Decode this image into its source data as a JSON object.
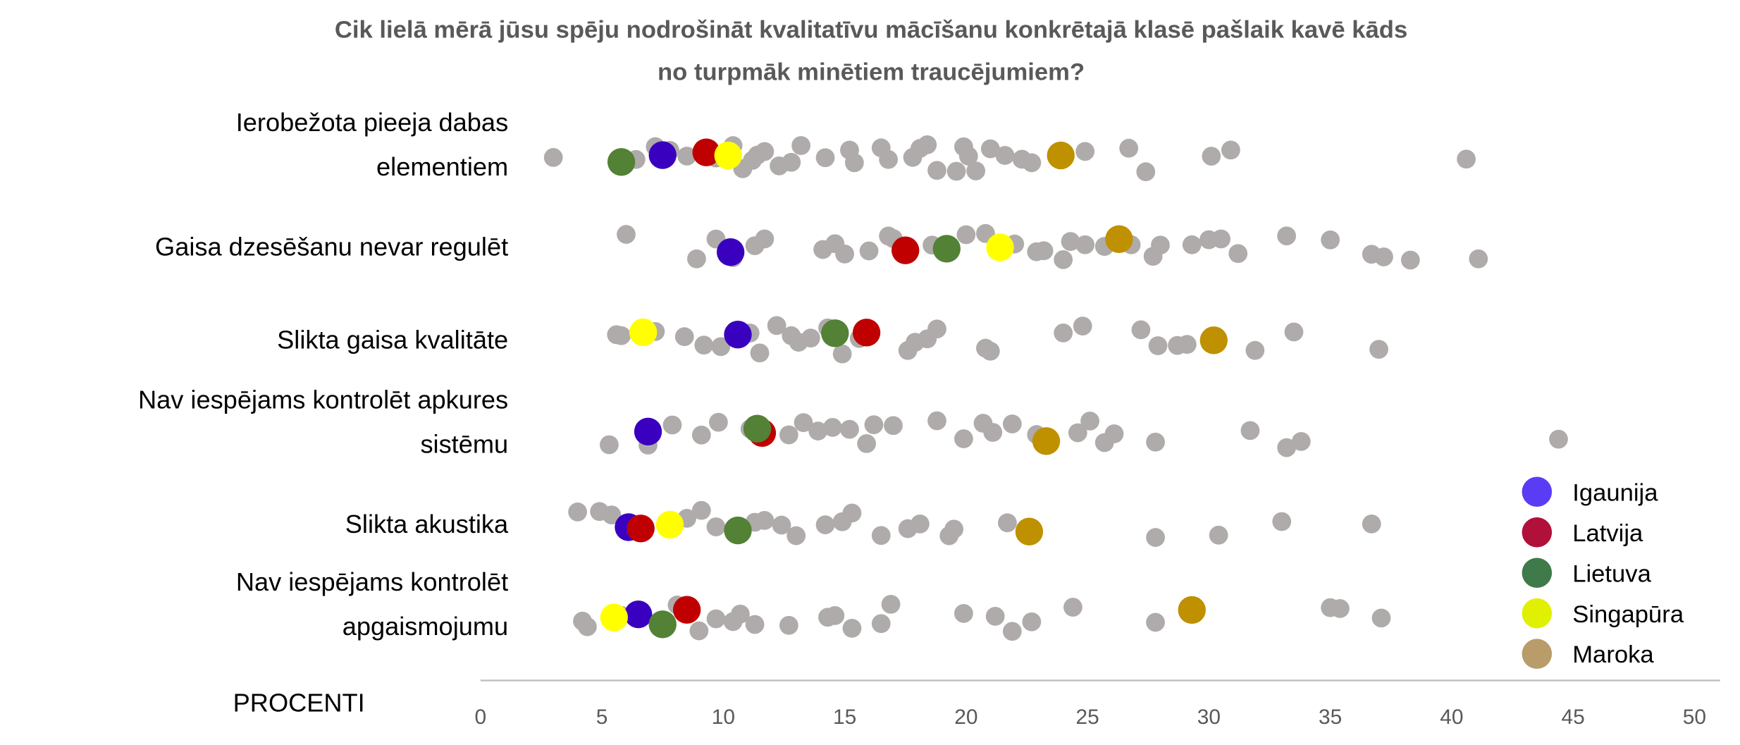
{
  "chart_data": {
    "type": "scatter",
    "subtype": "strip-plot",
    "title_lines": [
      "Cik lielā mērā jūsu spēju nodrošināt kvalitatīvu mācīšanu konkrētajā klasē pašlaik kavē kāds",
      "no turpmāk minētiem traucējumiem?"
    ],
    "xlabel": "PROCENTI",
    "xlim": [
      0,
      50
    ],
    "xticks": [
      0,
      5,
      10,
      15,
      20,
      25,
      30,
      35,
      40,
      45,
      50
    ],
    "legend_position": "bottom-right",
    "categories": [
      {
        "label_lines": [
          "Ierobežota pieeja dabas",
          "elementiem"
        ],
        "others": [
          3.0,
          6.4,
          7.2,
          7.8,
          8.5,
          9.7,
          10.4,
          10.8,
          11.2,
          11.4,
          11.7,
          12.3,
          12.8,
          13.2,
          14.2,
          15.2,
          15.4,
          16.5,
          16.8,
          17.8,
          18.1,
          18.4,
          18.8,
          19.6,
          19.9,
          20.1,
          20.4,
          21.0,
          21.6,
          22.3,
          22.7,
          24.9,
          26.7,
          27.4,
          30.1,
          30.9,
          40.6
        ],
        "highlighted": {
          "Igaunija": 7.5,
          "Latvija": 9.3,
          "Lietuva": 5.8,
          "Singapūra": 10.2,
          "Maroka": 23.9
        }
      },
      {
        "label_lines": [
          "Gaisa dzesēšanu nevar regulēt"
        ],
        "others": [
          6.0,
          8.9,
          9.7,
          10.4,
          11.3,
          11.7,
          14.1,
          14.6,
          15.0,
          16.0,
          16.8,
          17.0,
          18.6,
          20.0,
          20.8,
          22.0,
          22.9,
          23.2,
          24.0,
          24.3,
          24.9,
          25.7,
          26.8,
          27.7,
          28.0,
          29.3,
          30.0,
          30.5,
          31.2,
          33.2,
          35.0,
          36.7,
          37.2,
          38.3,
          41.1
        ],
        "highlighted": {
          "Igaunija": 10.3,
          "Latvija": 17.5,
          "Lietuva": 19.2,
          "Singapūra": 21.4,
          "Maroka": 26.3
        }
      },
      {
        "label_lines": [
          "Slikta gaisa kvalitāte"
        ],
        "others": [
          5.6,
          5.8,
          7.2,
          8.4,
          9.2,
          9.9,
          11.1,
          11.5,
          12.2,
          12.8,
          13.1,
          13.6,
          14.3,
          14.9,
          15.6,
          17.6,
          17.9,
          18.4,
          18.8,
          20.8,
          21.0,
          24.0,
          24.8,
          27.2,
          27.9,
          28.7,
          29.1,
          31.9,
          33.5,
          37.0
        ],
        "highlighted": {
          "Igaunija": 10.6,
          "Latvija": 15.9,
          "Lietuva": 14.6,
          "Singapūra": 6.7,
          "Maroka": 30.2
        }
      },
      {
        "label_lines": [
          "Nav iespējams kontrolēt apkures",
          "sistēmu"
        ],
        "others": [
          5.3,
          6.9,
          7.9,
          9.1,
          9.8,
          11.1,
          12.7,
          13.3,
          13.9,
          14.5,
          15.2,
          15.9,
          16.2,
          17.0,
          18.8,
          19.9,
          20.7,
          21.1,
          21.9,
          22.9,
          24.6,
          25.1,
          25.7,
          26.1,
          27.8,
          31.7,
          33.2,
          33.8,
          44.4
        ],
        "highlighted": {
          "Igaunija": 6.9,
          "Latvija": 11.6,
          "Lietuva": 11.4,
          "Maroka": 23.3
        }
      },
      {
        "label_lines": [
          "Slikta akustika"
        ],
        "others": [
          4.0,
          4.9,
          5.4,
          8.5,
          9.1,
          9.7,
          11.3,
          11.7,
          12.4,
          13.0,
          14.2,
          14.9,
          15.3,
          16.5,
          17.6,
          18.1,
          19.3,
          19.5,
          21.7,
          27.8,
          30.4,
          33.0,
          36.7
        ],
        "highlighted": {
          "Igaunija": 6.1,
          "Latvija": 6.6,
          "Lietuva": 10.6,
          "Singapūra": 7.8,
          "Maroka": 22.6
        }
      },
      {
        "label_lines": [
          "Nav iespējams kontrolēt",
          "apgaismojumu"
        ],
        "others": [
          4.2,
          4.4,
          5.8,
          8.1,
          9.0,
          9.7,
          10.4,
          10.7,
          11.3,
          12.7,
          14.3,
          14.6,
          15.3,
          16.5,
          16.9,
          19.9,
          21.2,
          21.9,
          22.7,
          24.4,
          27.8,
          35.0,
          35.4,
          37.1
        ],
        "highlighted": {
          "Igaunija": 6.5,
          "Latvija": 8.5,
          "Lietuva": 7.5,
          "Singapūra": 5.5,
          "Maroka": 29.3
        }
      }
    ],
    "series": [
      {
        "name": "Igaunija",
        "color": "#3a00c0",
        "legend_color": "#5b3cf5"
      },
      {
        "name": "Latvija",
        "color": "#c00000",
        "legend_color": "#b0103a"
      },
      {
        "name": "Lietuva",
        "color": "#538135",
        "legend_color": "#3f7a4a"
      },
      {
        "name": "Singapūra",
        "color": "#ffff00",
        "legend_color": "#e0f000"
      },
      {
        "name": "Maroka",
        "color": "#bf9000",
        "legend_color": "#b89c6a"
      }
    ],
    "others_color": "#afabab",
    "axis_color": "#bfbfbf"
  }
}
